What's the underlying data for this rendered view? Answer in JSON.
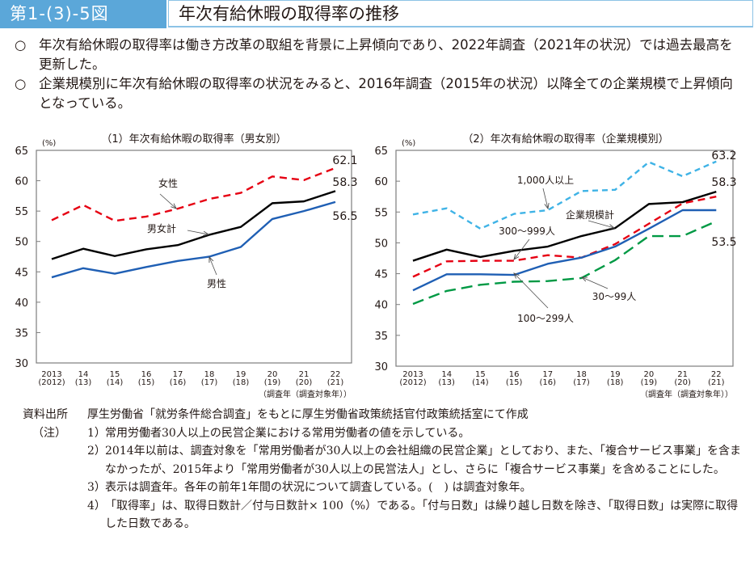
{
  "header": {
    "figure_number": "第1-(3)-5図",
    "title": "年次有給休暇の取得率の推移",
    "colors": {
      "number_bg": "#5ba7d9",
      "border": "#8cc3e6"
    }
  },
  "bullets": [
    {
      "mark": "○",
      "text": "年次有給休暇の取得率は働き方改革の取組を背景に上昇傾向であり、2022年調査（2021年の状況）では過去最高を更新した。"
    },
    {
      "mark": "○",
      "text": "企業規模別に年次有給休暇の取得率の状況をみると、2016年調査（2015年の状況）以降全ての企業規模で上昇傾向となっている。"
    }
  ],
  "chart_data": [
    {
      "type": "line",
      "title": "（1）年次有給休暇の取得率（男女別）",
      "ylabel": "(%)",
      "xlabel": "（調査年（調査対象年））",
      "ylim": [
        30,
        65
      ],
      "yticks": [
        30,
        35,
        40,
        45,
        50,
        55,
        60,
        65
      ],
      "grid": false,
      "categories": [
        "2013",
        "14",
        "15",
        "16",
        "17",
        "18",
        "19",
        "20",
        "21",
        "22"
      ],
      "category_sublabels": [
        "(2012)",
        "(13)",
        "(14)",
        "(15)",
        "(16)",
        "(17)",
        "(18)",
        "(19)",
        "(20)",
        "(21)"
      ],
      "series": [
        {
          "name": "女性",
          "color": "#e60012",
          "style": "dashed",
          "values": [
            53.5,
            56.0,
            53.4,
            54.1,
            55.4,
            57.0,
            58.0,
            60.7,
            60.1,
            62.1
          ],
          "end_label": "62.1"
        },
        {
          "name": "男女計",
          "color": "#000000",
          "style": "solid",
          "values": [
            47.1,
            48.8,
            47.6,
            48.7,
            49.4,
            51.1,
            52.4,
            56.3,
            56.6,
            58.3
          ],
          "end_label": "58.3"
        },
        {
          "name": "男性",
          "color": "#1f5fb4",
          "style": "solid",
          "values": [
            44.1,
            45.6,
            44.7,
            45.8,
            46.8,
            47.5,
            49.1,
            53.7,
            55.0,
            56.5
          ],
          "end_label": "56.5"
        }
      ],
      "annotations": [
        {
          "text": "女性",
          "series": "女性",
          "point_index": 4
        },
        {
          "text": "男女計",
          "series": "男女計",
          "point_index": 5
        },
        {
          "text": "男性",
          "series": "男性",
          "point_index": 5
        }
      ]
    },
    {
      "type": "line",
      "title": "（2）年次有給休暇の取得率（企業規模別）",
      "ylabel": "(%)",
      "xlabel": "（調査年（調査対象年））",
      "ylim": [
        30,
        65
      ],
      "yticks": [
        30,
        35,
        40,
        45,
        50,
        55,
        60,
        65
      ],
      "grid": false,
      "categories": [
        "2013",
        "14",
        "15",
        "16",
        "17",
        "18",
        "19",
        "20",
        "21",
        "22"
      ],
      "category_sublabels": [
        "(2012)",
        "(13)",
        "(14)",
        "(15)",
        "(16)",
        "(17)",
        "(18)",
        "(19)",
        "(20)",
        "(21)"
      ],
      "series": [
        {
          "name": "1,000人以上",
          "color": "#3fb3e6",
          "style": "dashed-short",
          "values": [
            54.6,
            55.6,
            52.3,
            54.7,
            55.3,
            58.4,
            58.6,
            63.1,
            60.8,
            63.2
          ],
          "end_label": "63.2"
        },
        {
          "name": "企業規模計",
          "color": "#000000",
          "style": "solid",
          "values": [
            47.1,
            48.9,
            47.7,
            48.7,
            49.4,
            51.1,
            52.4,
            56.3,
            56.6,
            58.3
          ],
          "end_label": "58.3"
        },
        {
          "name": "300～999人",
          "color": "#e60012",
          "style": "dashed",
          "values": [
            44.5,
            47.0,
            47.1,
            47.1,
            48.0,
            47.6,
            49.8,
            53.1,
            56.4,
            57.5
          ],
          "end_label": ""
        },
        {
          "name": "100～299人",
          "color": "#1f5fb4",
          "style": "solid",
          "values": [
            42.3,
            44.9,
            44.9,
            44.8,
            46.6,
            47.6,
            49.4,
            52.3,
            55.3,
            55.3
          ],
          "end_label": ""
        },
        {
          "name": "30～99人",
          "color": "#009944",
          "style": "dashed-long",
          "values": [
            40.1,
            42.2,
            43.2,
            43.7,
            43.8,
            44.3,
            47.2,
            51.1,
            51.1,
            53.5
          ],
          "end_label": "53.5"
        }
      ],
      "annotations": [
        {
          "text": "1,000人以上",
          "series": "1,000人以上",
          "point_index": 4
        },
        {
          "text": "企業規模計",
          "series": "企業規模計",
          "point_index": 6
        },
        {
          "text": "300～999人",
          "series": "300～999人",
          "point_index": 3
        },
        {
          "text": "100～299人",
          "series": "100～299人",
          "point_index": 3
        },
        {
          "text": "30～99人",
          "series": "30～99人",
          "point_index": 5
        }
      ]
    }
  ],
  "notes": {
    "source_label": "資料出所",
    "source_text": "厚生労働省「就労条件総合調査」をもとに厚生労働省政策統括官付政策統括室にて作成",
    "notes_label": "（注）",
    "items": [
      {
        "num": "1）",
        "text": "常用労働者30人以上の民営企業における常用労働者の値を示している。"
      },
      {
        "num": "2）",
        "text": "2014年以前は、調査対象を「常用労働者が30人以上の会社組織の民営企業」としており、また、「複合サービス事業」を含まなかったが、2015年より「常用労働者が30人以上の民営法人」とし、さらに「複合サービス事業」を含めることにした。"
      },
      {
        "num": "3）",
        "text": "表示は調査年。各年の前年1年間の状況について調査している。(　) は調査対象年。"
      },
      {
        "num": "4）",
        "text": "「取得率」は、取得日数計／付与日数計× 100（%）である。「付与日数」は繰り越し日数を除き、「取得日数」は実際に取得した日数である。"
      }
    ]
  }
}
